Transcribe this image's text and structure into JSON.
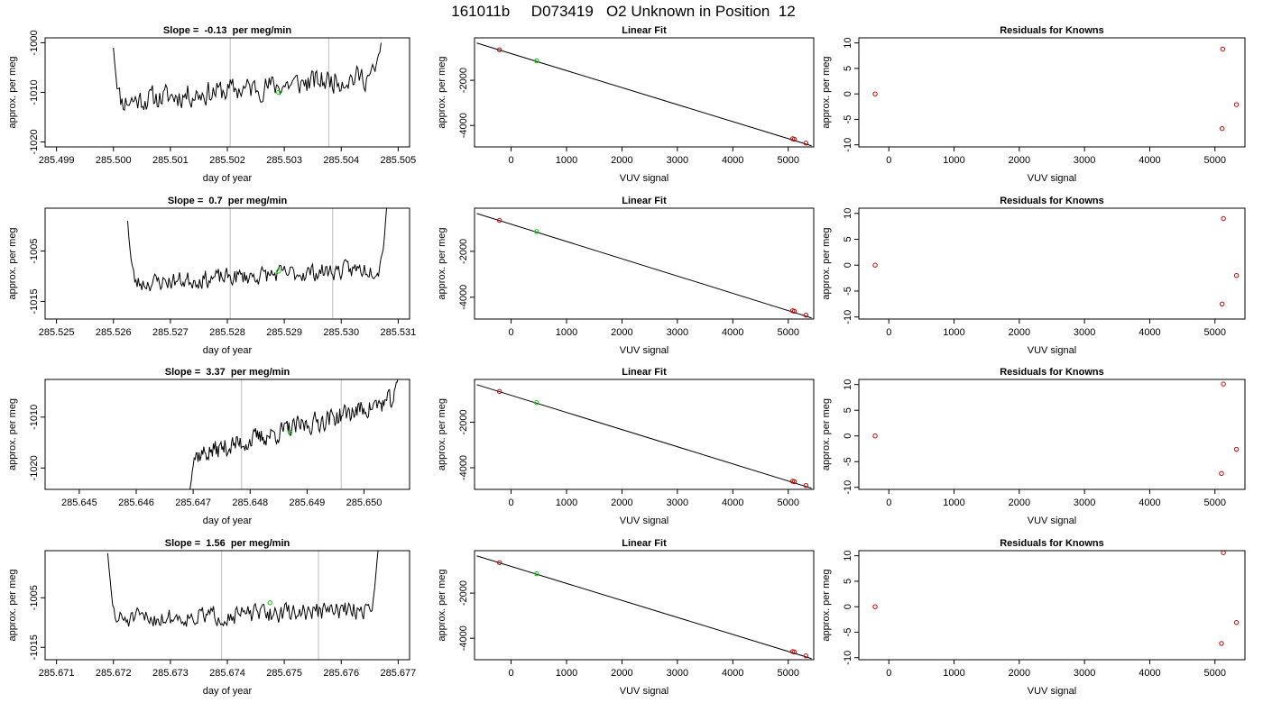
{
  "figure_title": "161011b     D073419   O2 Unknown in Position  12",
  "colors": {
    "trace": "#000000",
    "known_points": "#cc0000",
    "unknown_point": "#00cc00",
    "vertical_markers": "#bebebe"
  },
  "chart_data": [
    {
      "type": "line",
      "row": 1,
      "title": "Slope =  -0.13  per meg/min",
      "xlabel": "day of year",
      "ylabel": "approx. per meg",
      "xlim": [
        285.4988,
        285.5052
      ],
      "ylim": [
        -1021,
        -999
      ],
      "xticks": [
        285.499,
        285.5,
        285.501,
        285.502,
        285.503,
        285.504,
        285.505
      ],
      "xtick_labels": [
        "285.499",
        "285.500",
        "285.501",
        "285.502",
        "285.503",
        "285.504",
        "285.505"
      ],
      "yticks": [
        -1020,
        -1010,
        -1000
      ],
      "ytick_labels": [
        "-1020",
        "-1010",
        "-1000"
      ],
      "vlines": [
        285.50205,
        285.50378
      ],
      "highlight_point": {
        "x": 285.5029,
        "y": -1010.0
      },
      "trace": {
        "start": 285.5,
        "end": 285.5047,
        "start_y": -1001,
        "end_y": -1000,
        "base_y": -1012.0,
        "trend_y": 5.5,
        "noise": 2.2,
        "seed": 11
      }
    },
    {
      "type": "line",
      "row": 1,
      "title": "Linear Fit",
      "xlabel": "VUV signal",
      "ylabel": "approx. per meg",
      "xlim": [
        -660,
        5460
      ],
      "ylim": [
        -4950,
        -120
      ],
      "xticks": [
        0,
        1000,
        2000,
        3000,
        4000,
        5000
      ],
      "xtick_labels": [
        "0",
        "1000",
        "2000",
        "3000",
        "4000",
        "5000"
      ],
      "yticks": [
        -4000,
        -2000
      ],
      "ytick_labels": [
        "-4000",
        "-2000"
      ],
      "fit_line": {
        "x": [
          -620,
          5420
        ],
        "y": [
          -350,
          -4900
        ]
      },
      "known_points": {
        "x": [
          -210,
          5080,
          5110,
          5320
        ],
        "y": [
          -650,
          -4590,
          -4610,
          -4780
        ]
      },
      "unknown_point": {
        "x": 460,
        "y": -1140
      }
    },
    {
      "type": "scatter",
      "row": 1,
      "title": "Residuals for Knowns",
      "xlabel": "VUV signal",
      "ylabel": "approx. per meg",
      "xlim": [
        -460,
        5460
      ],
      "ylim": [
        -10.4,
        11
      ],
      "xticks": [
        0,
        1000,
        2000,
        3000,
        4000,
        5000
      ],
      "xtick_labels": [
        "0",
        "1000",
        "2000",
        "3000",
        "4000",
        "5000"
      ],
      "yticks": [
        -10,
        -5,
        0,
        5,
        10
      ],
      "ytick_labels": [
        "-10",
        "-5",
        "0",
        "5",
        "10"
      ],
      "points": {
        "x": [
          -210,
          5110,
          5120,
          5330
        ],
        "y": [
          0,
          -6.8,
          8.8,
          -2.1
        ]
      }
    },
    {
      "type": "line",
      "row": 2,
      "title": "Slope =  0.7  per meg/min",
      "xlabel": "day of year",
      "ylabel": "approx. per meg",
      "xlim": [
        285.5248,
        285.5312
      ],
      "ylim": [
        -1018.5,
        -996.5
      ],
      "xticks": [
        285.525,
        285.526,
        285.527,
        285.528,
        285.529,
        285.53,
        285.531
      ],
      "xtick_labels": [
        "285.525",
        "285.526",
        "285.527",
        "285.528",
        "285.529",
        "285.530",
        "285.531"
      ],
      "yticks": [
        -1015,
        -1005
      ],
      "ytick_labels": [
        "-1015",
        "-1005"
      ],
      "vlines": [
        285.52805,
        285.52985
      ],
      "highlight_point": {
        "x": 285.5289,
        "y": -1009.0
      },
      "trace": {
        "start": 285.52625,
        "end": 285.5308,
        "start_y": -999,
        "end_y": -996,
        "base_y": -1011.5,
        "trend_y": 3.2,
        "noise": 1.6,
        "seed": 23
      }
    },
    {
      "type": "line",
      "row": 2,
      "title": "Linear Fit",
      "xlabel": "VUV signal",
      "ylabel": "approx. per meg",
      "xlim": [
        -660,
        5460
      ],
      "ylim": [
        -4950,
        -120
      ],
      "xticks": [
        0,
        1000,
        2000,
        3000,
        4000,
        5000
      ],
      "xtick_labels": [
        "0",
        "1000",
        "2000",
        "3000",
        "4000",
        "5000"
      ],
      "yticks": [
        -4000,
        -2000
      ],
      "ytick_labels": [
        "-4000",
        "-2000"
      ],
      "fit_line": {
        "x": [
          -620,
          5420
        ],
        "y": [
          -350,
          -4900
        ]
      },
      "known_points": {
        "x": [
          -210,
          5080,
          5110,
          5320
        ],
        "y": [
          -650,
          -4590,
          -4610,
          -4780
        ]
      },
      "unknown_point": {
        "x": 460,
        "y": -1140
      }
    },
    {
      "type": "scatter",
      "row": 2,
      "title": "Residuals for Knowns",
      "xlabel": "VUV signal",
      "ylabel": "approx. per meg",
      "xlim": [
        -460,
        5460
      ],
      "ylim": [
        -10.4,
        11
      ],
      "xticks": [
        0,
        1000,
        2000,
        3000,
        4000,
        5000
      ],
      "xtick_labels": [
        "0",
        "1000",
        "2000",
        "3000",
        "4000",
        "5000"
      ],
      "yticks": [
        -10,
        -5,
        0,
        5,
        10
      ],
      "ytick_labels": [
        "-10",
        "-5",
        "0",
        "5",
        "10"
      ],
      "points": {
        "x": [
          -210,
          5110,
          5130,
          5330
        ],
        "y": [
          0,
          -7.5,
          9.0,
          -2.0
        ]
      }
    },
    {
      "type": "line",
      "row": 3,
      "title": "Slope =  3.37  per meg/min",
      "xlabel": "day of year",
      "ylabel": "approx. per meg",
      "xlim": [
        285.6444,
        285.6508
      ],
      "ylim": [
        -1024.2,
        -1002.6
      ],
      "xticks": [
        285.645,
        285.646,
        285.647,
        285.648,
        285.649,
        285.65
      ],
      "xtick_labels": [
        "285.645",
        "285.646",
        "285.647",
        "285.648",
        "285.649",
        "285.650"
      ],
      "yticks": [
        -1020,
        -1010
      ],
      "ytick_labels": [
        "-1020",
        "-1010"
      ],
      "vlines": [
        285.64785,
        285.6496
      ],
      "highlight_point": {
        "x": 285.6487,
        "y": -1013.0
      },
      "trace": {
        "start": 285.6469,
        "end": 285.6506,
        "start_y": -1030,
        "end_y": -1002,
        "base_y": -1018.0,
        "trend_y": 11.5,
        "noise": 1.8,
        "seed": 37
      }
    },
    {
      "type": "line",
      "row": 3,
      "title": "Linear Fit",
      "xlabel": "VUV signal",
      "ylabel": "approx. per meg",
      "xlim": [
        -660,
        5460
      ],
      "ylim": [
        -4950,
        -120
      ],
      "xticks": [
        0,
        1000,
        2000,
        3000,
        4000,
        5000
      ],
      "xtick_labels": [
        "0",
        "1000",
        "2000",
        "3000",
        "4000",
        "5000"
      ],
      "yticks": [
        -4000,
        -2000
      ],
      "ytick_labels": [
        "-4000",
        "-2000"
      ],
      "fit_line": {
        "x": [
          -620,
          5420
        ],
        "y": [
          -350,
          -4900
        ]
      },
      "known_points": {
        "x": [
          -210,
          5080,
          5110,
          5320
        ],
        "y": [
          -650,
          -4590,
          -4610,
          -4780
        ]
      },
      "unknown_point": {
        "x": 460,
        "y": -1140
      }
    },
    {
      "type": "scatter",
      "row": 3,
      "title": "Residuals for Knowns",
      "xlabel": "VUV signal",
      "ylabel": "approx. per meg",
      "xlim": [
        -460,
        5460
      ],
      "ylim": [
        -10.4,
        11
      ],
      "xticks": [
        0,
        1000,
        2000,
        3000,
        4000,
        5000
      ],
      "xtick_labels": [
        "0",
        "1000",
        "2000",
        "3000",
        "4000",
        "5000"
      ],
      "yticks": [
        -10,
        -5,
        0,
        5,
        10
      ],
      "ytick_labels": [
        "-10",
        "-5",
        "0",
        "5",
        "10"
      ],
      "points": {
        "x": [
          -210,
          5100,
          5130,
          5330
        ],
        "y": [
          0,
          -7.3,
          10.1,
          -2.6
        ]
      }
    },
    {
      "type": "line",
      "row": 4,
      "title": "Slope =  1.56  per meg/min",
      "xlabel": "day of year",
      "ylabel": "approx. per meg",
      "xlim": [
        285.6708,
        285.6772
      ],
      "ylim": [
        -1017.5,
        -995.5
      ],
      "xticks": [
        285.671,
        285.672,
        285.673,
        285.674,
        285.675,
        285.676,
        285.677
      ],
      "xtick_labels": [
        "285.671",
        "285.672",
        "285.673",
        "285.674",
        "285.675",
        "285.676",
        "285.677"
      ],
      "yticks": [
        -1015,
        -1005
      ],
      "ytick_labels": [
        "-1015",
        "-1005"
      ],
      "vlines": [
        285.6739,
        285.6756
      ],
      "highlight_point": {
        "x": 285.67475,
        "y": -1006.0
      },
      "trace": {
        "start": 285.6719,
        "end": 285.67665,
        "start_y": -996,
        "end_y": -995,
        "base_y": -1009.5,
        "trend_y": 2.2,
        "noise": 1.7,
        "seed": 51
      }
    },
    {
      "type": "line",
      "row": 4,
      "title": "Linear Fit",
      "xlabel": "VUV signal",
      "ylabel": "approx. per meg",
      "xlim": [
        -660,
        5460
      ],
      "ylim": [
        -4950,
        -120
      ],
      "xticks": [
        0,
        1000,
        2000,
        3000,
        4000,
        5000
      ],
      "xtick_labels": [
        "0",
        "1000",
        "2000",
        "3000",
        "4000",
        "5000"
      ],
      "yticks": [
        -4000,
        -2000
      ],
      "ytick_labels": [
        "-4000",
        "-2000"
      ],
      "fit_line": {
        "x": [
          -620,
          5420
        ],
        "y": [
          -350,
          -4900
        ]
      },
      "known_points": {
        "x": [
          -210,
          5080,
          5110,
          5320
        ],
        "y": [
          -650,
          -4590,
          -4610,
          -4780
        ]
      },
      "unknown_point": {
        "x": 460,
        "y": -1140
      }
    },
    {
      "type": "scatter",
      "row": 4,
      "title": "Residuals for Knowns",
      "xlabel": "VUV signal",
      "ylabel": "approx. per meg",
      "xlim": [
        -460,
        5460
      ],
      "ylim": [
        -10.4,
        11
      ],
      "xticks": [
        0,
        1000,
        2000,
        3000,
        4000,
        5000
      ],
      "xtick_labels": [
        "0",
        "1000",
        "2000",
        "3000",
        "4000",
        "5000"
      ],
      "points": {
        "x": [
          -210,
          5100,
          5130,
          5330
        ],
        "y": [
          0,
          -7.2,
          10.6,
          -3.1
        ]
      },
      "yticks": [
        -10,
        -5,
        0,
        5,
        10
      ],
      "ytick_labels": [
        "-10",
        "-5",
        "0",
        "5",
        "10"
      ]
    }
  ]
}
